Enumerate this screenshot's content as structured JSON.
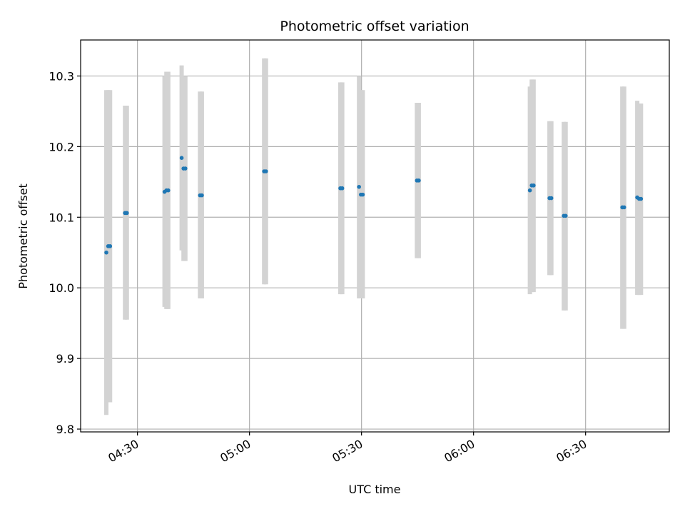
{
  "chart_data": {
    "type": "scatter",
    "title": "Photometric offset variation",
    "xlabel": "UTC time",
    "ylabel": "Photometric offset",
    "xlim": [
      "04:14:47",
      "06:52:25"
    ],
    "ylim": [
      9.796,
      10.351
    ],
    "grid": true,
    "xticks": [
      "04:30",
      "05:00",
      "05:30",
      "06:00",
      "06:30"
    ],
    "yticks": [
      "9.8",
      "9.9",
      "10.0",
      "10.1",
      "10.2",
      "10.3"
    ],
    "colors": {
      "points": "#1f77b4",
      "errorbars": "#d3d3d3",
      "grid": "#b0b0b0"
    },
    "points": [
      {
        "time": "04:21:40",
        "value": 10.05,
        "low": 9.82,
        "high": 10.28
      },
      {
        "time": "04:22:10",
        "value": 10.059,
        "low": 9.838,
        "high": 10.28
      },
      {
        "time": "04:22:40",
        "value": 10.059,
        "low": 9.838,
        "high": 10.28
      },
      {
        "time": "04:26:40",
        "value": 10.106,
        "low": 9.955,
        "high": 10.258
      },
      {
        "time": "04:27:10",
        "value": 10.106,
        "low": 9.955,
        "high": 10.258
      },
      {
        "time": "04:37:15",
        "value": 10.136,
        "low": 9.973,
        "high": 10.3
      },
      {
        "time": "04:37:45",
        "value": 10.138,
        "low": 9.97,
        "high": 10.306
      },
      {
        "time": "04:38:15",
        "value": 10.138,
        "low": 9.97,
        "high": 10.306
      },
      {
        "time": "04:41:50",
        "value": 10.184,
        "low": 10.053,
        "high": 10.315
      },
      {
        "time": "04:42:20",
        "value": 10.169,
        "low": 10.038,
        "high": 10.3
      },
      {
        "time": "04:42:50",
        "value": 10.169,
        "low": 10.038,
        "high": 10.3
      },
      {
        "time": "04:46:45",
        "value": 10.131,
        "low": 9.985,
        "high": 10.278
      },
      {
        "time": "04:47:15",
        "value": 10.131,
        "low": 9.985,
        "high": 10.278
      },
      {
        "time": "05:03:55",
        "value": 10.165,
        "low": 10.005,
        "high": 10.325
      },
      {
        "time": "05:04:25",
        "value": 10.165,
        "low": 10.005,
        "high": 10.325
      },
      {
        "time": "05:24:20",
        "value": 10.141,
        "low": 9.991,
        "high": 10.291
      },
      {
        "time": "05:24:50",
        "value": 10.141,
        "low": 9.991,
        "high": 10.291
      },
      {
        "time": "05:29:20",
        "value": 10.143,
        "low": 9.985,
        "high": 10.3
      },
      {
        "time": "05:29:50",
        "value": 10.132,
        "low": 9.985,
        "high": 10.28
      },
      {
        "time": "05:30:20",
        "value": 10.132,
        "low": 9.985,
        "high": 10.28
      },
      {
        "time": "05:44:50",
        "value": 10.152,
        "low": 10.042,
        "high": 10.262
      },
      {
        "time": "05:45:20",
        "value": 10.152,
        "low": 10.042,
        "high": 10.262
      },
      {
        "time": "06:15:05",
        "value": 10.138,
        "low": 9.991,
        "high": 10.285
      },
      {
        "time": "06:15:35",
        "value": 10.145,
        "low": 9.994,
        "high": 10.295
      },
      {
        "time": "06:16:05",
        "value": 10.145,
        "low": 9.994,
        "high": 10.295
      },
      {
        "time": "06:20:20",
        "value": 10.127,
        "low": 10.018,
        "high": 10.236
      },
      {
        "time": "06:20:50",
        "value": 10.127,
        "low": 10.018,
        "high": 10.236
      },
      {
        "time": "06:24:10",
        "value": 10.102,
        "low": 9.968,
        "high": 10.235
      },
      {
        "time": "06:24:40",
        "value": 10.102,
        "low": 9.968,
        "high": 10.235
      },
      {
        "time": "06:39:50",
        "value": 10.114,
        "low": 9.942,
        "high": 10.285
      },
      {
        "time": "06:40:20",
        "value": 10.114,
        "low": 9.942,
        "high": 10.285
      },
      {
        "time": "06:43:50",
        "value": 10.128,
        "low": 9.99,
        "high": 10.265
      },
      {
        "time": "06:44:20",
        "value": 10.126,
        "low": 9.99,
        "high": 10.261
      },
      {
        "time": "06:44:50",
        "value": 10.126,
        "low": 9.99,
        "high": 10.261
      }
    ]
  }
}
